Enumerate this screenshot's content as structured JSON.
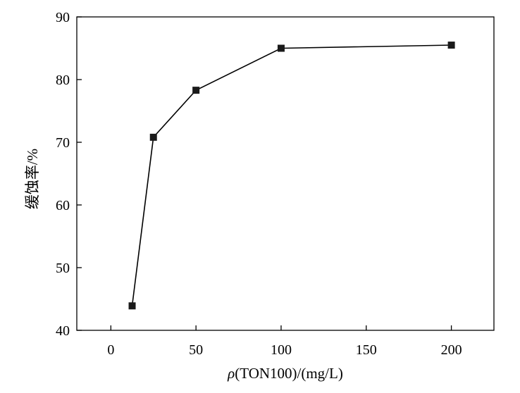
{
  "chart_data": {
    "type": "line",
    "title": "",
    "xlabel_symbol": "ρ",
    "xlabel_rest": "(TON100)/(mg/L)",
    "ylabel": "缓蚀率/%",
    "xlim": [
      -20,
      225
    ],
    "ylim": [
      40,
      90
    ],
    "xticks": [
      0,
      50,
      100,
      150,
      200
    ],
    "yticks": [
      40,
      50,
      60,
      70,
      80,
      90
    ],
    "x_tick_labels": [
      "0",
      "50",
      "100",
      "150",
      "200"
    ],
    "y_tick_labels": [
      "40",
      "50",
      "60",
      "70",
      "80",
      "90"
    ],
    "grid": false,
    "legend": "none",
    "series": [
      {
        "marker": "square",
        "color": "#1a1a1a",
        "x": [
          12.5,
          25,
          50,
          100,
          200
        ],
        "y": [
          43.9,
          70.8,
          78.3,
          85.0,
          85.5
        ]
      }
    ]
  }
}
